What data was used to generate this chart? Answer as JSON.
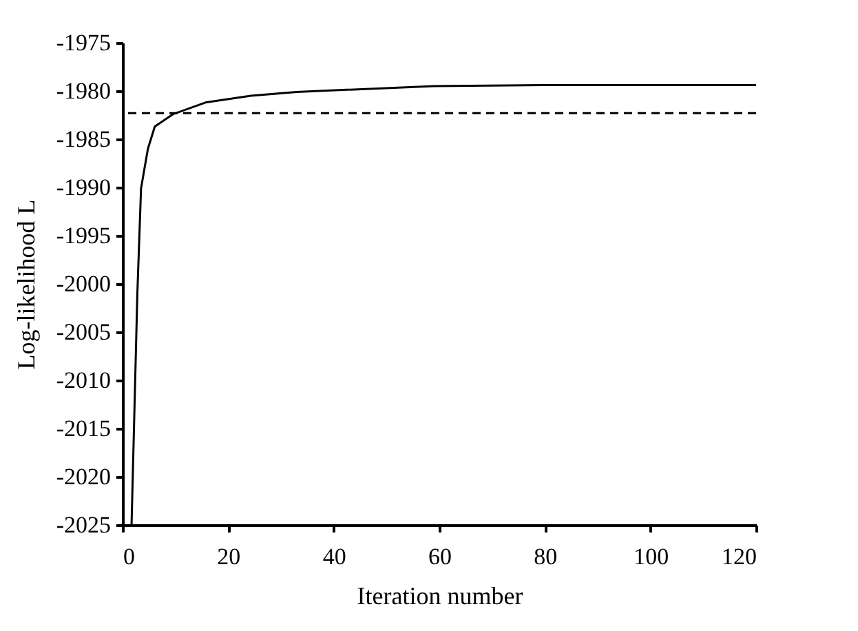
{
  "chart_data": {
    "type": "line",
    "xlabel": "Iteration number",
    "ylabel": "Log-likelihood L",
    "xlim": [
      0,
      120
    ],
    "xticks": [
      0,
      20,
      40,
      60,
      80,
      100,
      120
    ],
    "ylim": [
      -2025,
      -1975
    ],
    "yticks": [
      -2025,
      -2020,
      -2015,
      -2010,
      -2005,
      -2000,
      -1995,
      -1990,
      -1985,
      -1980,
      -1975
    ],
    "grid": false,
    "marker": "none",
    "line_style": "solid",
    "series": [
      {
        "color": "#000000",
        "x": [
          1.7,
          2.8,
          3.5,
          4.8,
          6.1,
          9.6,
          15.7,
          24.3,
          33,
          41.7,
          59,
          80,
          100,
          120
        ],
        "values": [
          -2025,
          -2001,
          -1990.1,
          -1986,
          -1983.7,
          -1982.4,
          -1981.2,
          -1980.5,
          -1980.1,
          -1979.9,
          -1979.5,
          -1979.4,
          -1979.4,
          -1979.4
        ]
      }
    ],
    "ref_lines": [
      {
        "axis": "y",
        "value": -1982.3,
        "color": "#000000",
        "line_style": "dashed"
      }
    ]
  }
}
